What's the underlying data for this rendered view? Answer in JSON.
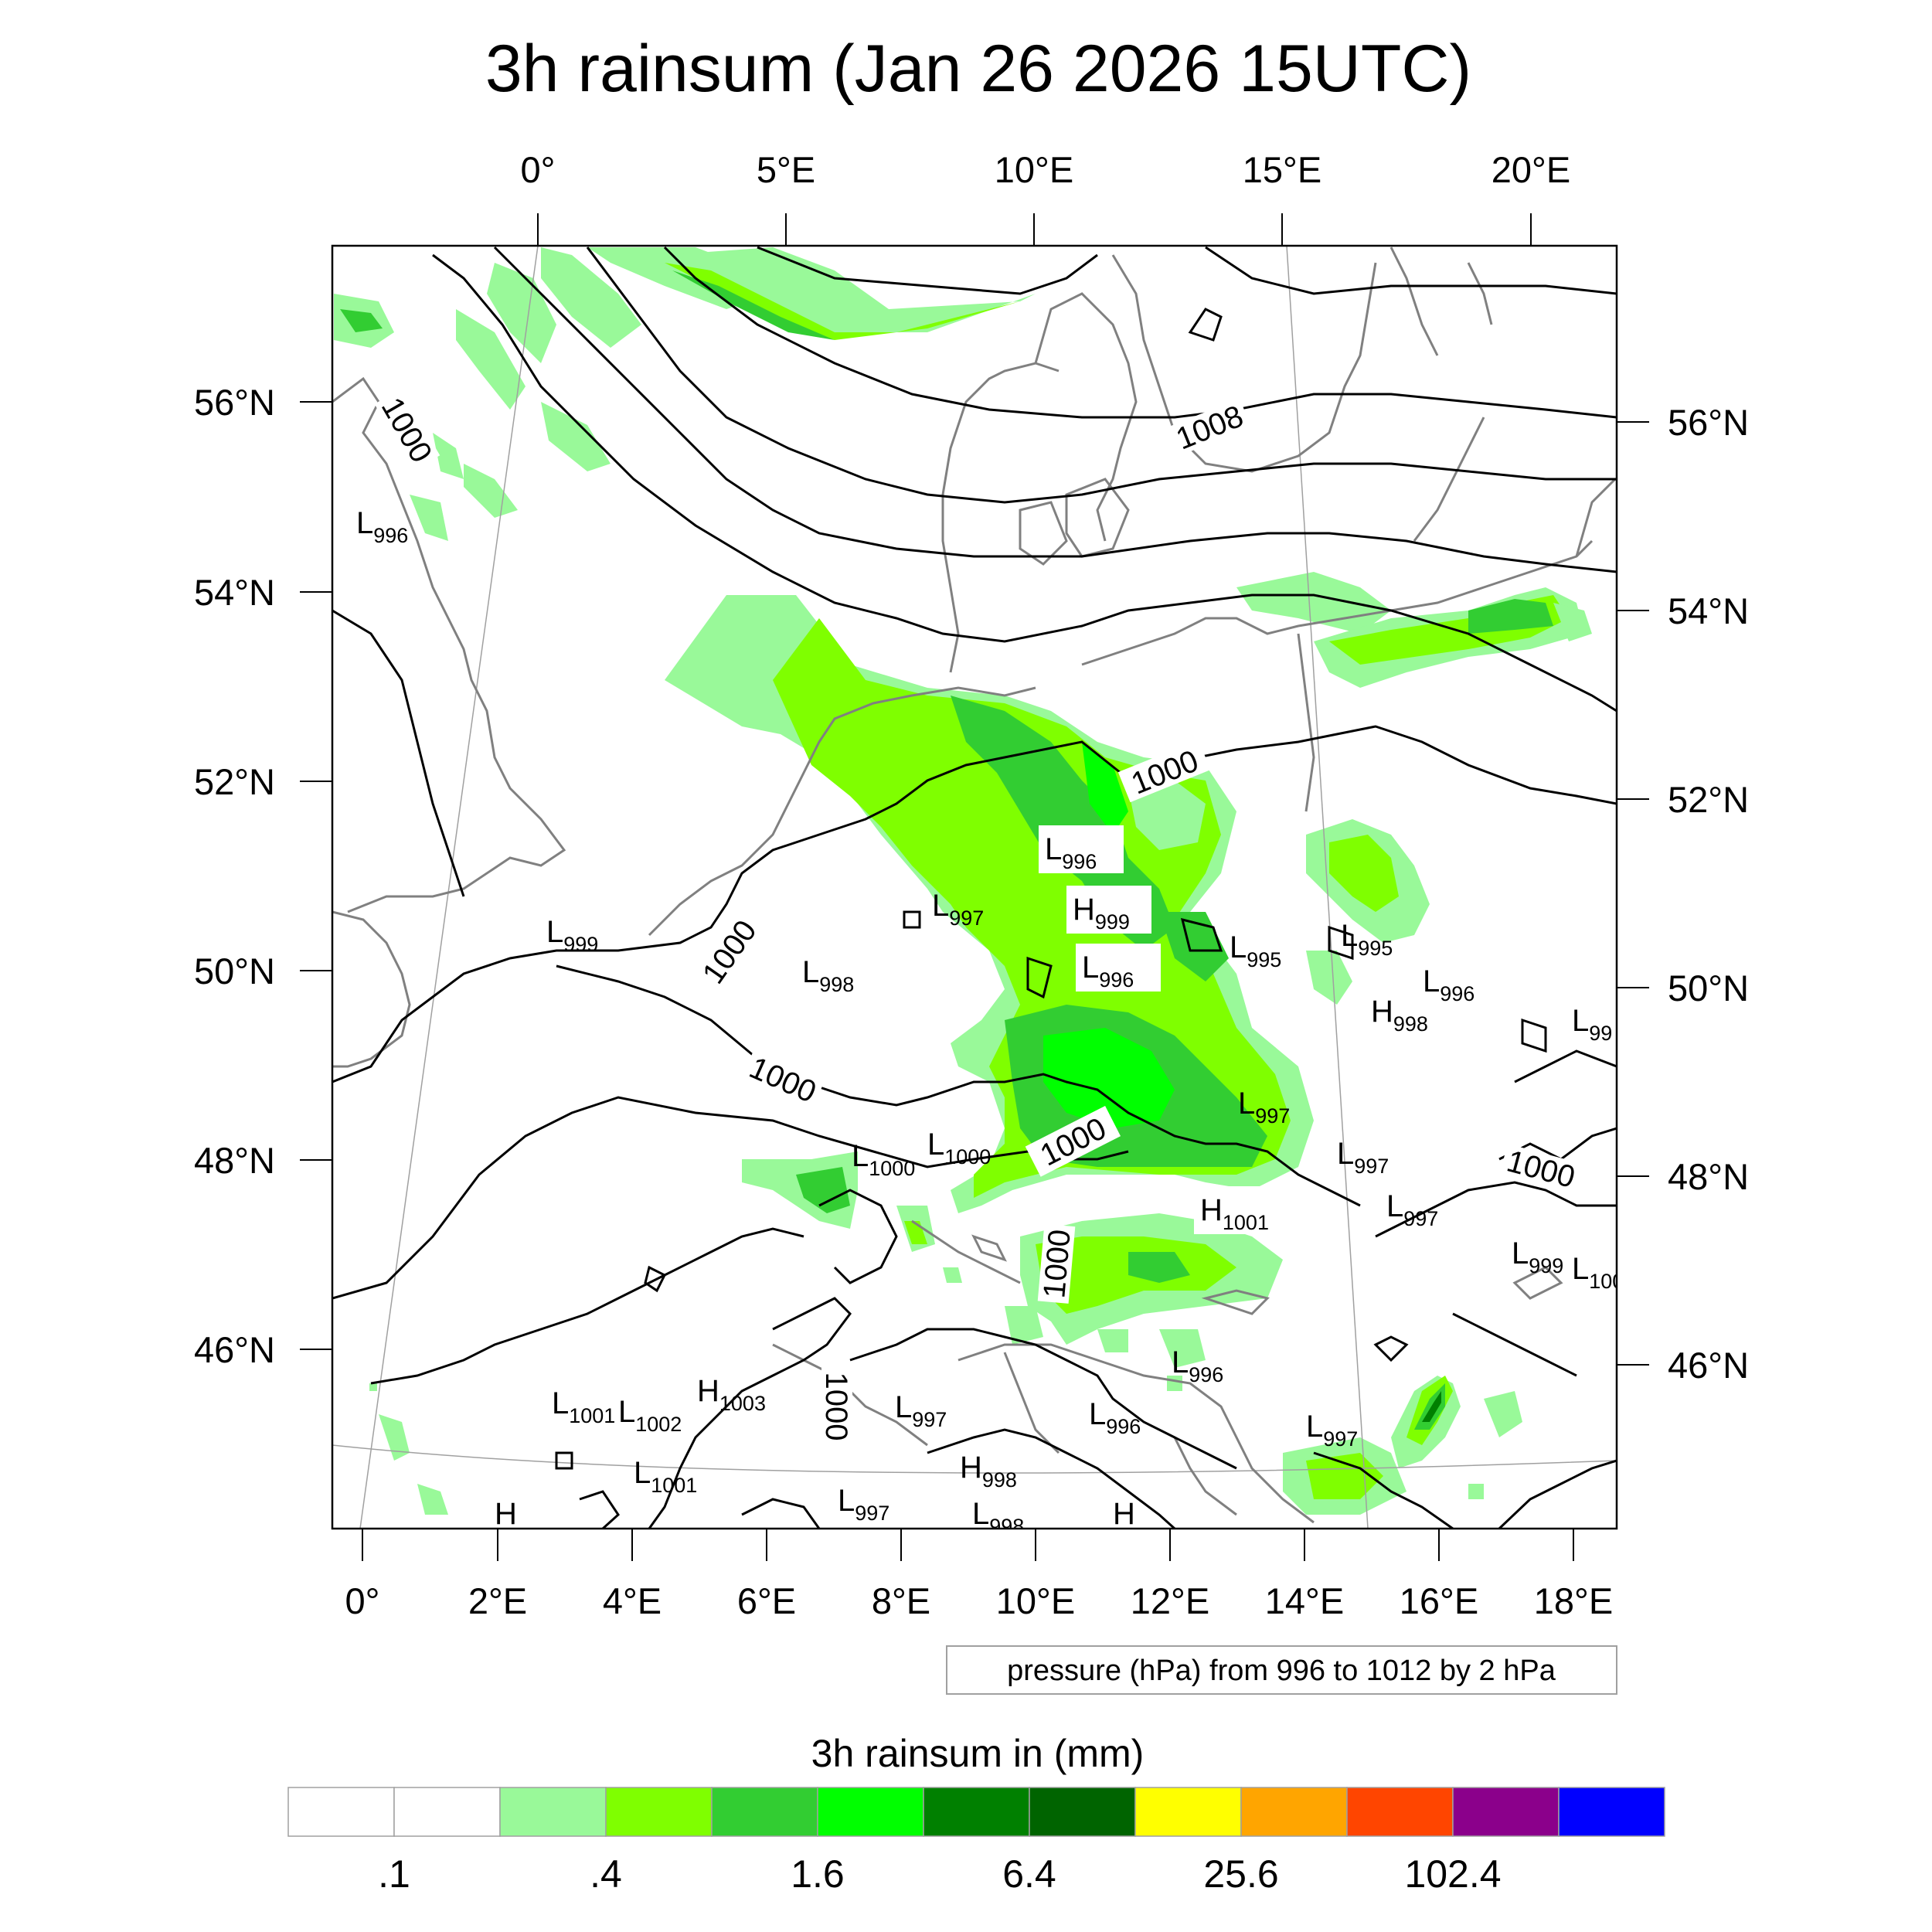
{
  "title": "3h rainsum (Jan 26 2026 15UTC)",
  "info_box": "pressure (hPa) from 996 to 1012 by 2 hPa",
  "colors": {
    "background": "#ffffff",
    "isobar": "#000000",
    "coastline": "#808080",
    "graticule": "#a0a0a0"
  },
  "top_lon_labels": [
    "0°",
    "5°E",
    "10°E",
    "15°E",
    "20°E"
  ],
  "bottom_lon_labels": [
    "0°",
    "2°E",
    "4°E",
    "6°E",
    "8°E",
    "10°E",
    "12°E",
    "14°E",
    "16°E",
    "18°E"
  ],
  "left_lat_labels": [
    "56°N",
    "54°N",
    "52°N",
    "50°N",
    "48°N",
    "46°N"
  ],
  "right_lat_labels": [
    "56°N",
    "54°N",
    "52°N",
    "50°N",
    "48°N",
    "46°N"
  ],
  "isobar_labels": [
    "1000",
    "1008",
    "1000",
    "1000",
    "1000",
    "1000",
    "1000",
    "1000",
    "1000"
  ],
  "pressure_centers": [
    {
      "type": "L",
      "value": "996"
    },
    {
      "type": "L",
      "value": "996"
    },
    {
      "type": "H",
      "value": "999"
    },
    {
      "type": "L",
      "value": "996"
    },
    {
      "type": "L",
      "value": "997"
    },
    {
      "type": "L",
      "value": "999"
    },
    {
      "type": "L",
      "value": "998"
    },
    {
      "type": "L",
      "value": "995"
    },
    {
      "type": "L",
      "value": "995"
    },
    {
      "type": "L",
      "value": "996"
    },
    {
      "type": "H",
      "value": "998"
    },
    {
      "type": "L",
      "value": "99"
    },
    {
      "type": "L",
      "value": "997"
    },
    {
      "type": "L",
      "value": "1000"
    },
    {
      "type": "L",
      "value": "1000"
    },
    {
      "type": "L",
      "value": "997"
    },
    {
      "type": "H",
      "value": "1001"
    },
    {
      "type": "L",
      "value": "997"
    },
    {
      "type": "L",
      "value": "999"
    },
    {
      "type": "L",
      "value": "100"
    },
    {
      "type": "L",
      "value": "996"
    },
    {
      "type": "L",
      "value": "1001"
    },
    {
      "type": "L",
      "value": "1002"
    },
    {
      "type": "H",
      "value": "1003"
    },
    {
      "type": "L",
      "value": "997"
    },
    {
      "type": "L",
      "value": "996"
    },
    {
      "type": "L",
      "value": "997"
    },
    {
      "type": "L",
      "value": "1001"
    },
    {
      "type": "H",
      "value": "998"
    },
    {
      "type": "L",
      "value": "997"
    },
    {
      "type": "L",
      "value": "998"
    },
    {
      "type": "H",
      "value": ""
    },
    {
      "type": "H",
      "value": ""
    }
  ],
  "legend": {
    "title": "3h rainsum in (mm)",
    "colors": [
      "#ffffff",
      "#ffffff",
      "#99f999",
      "#7fff00",
      "#32cd32",
      "#00ff00",
      "#008000",
      "#006400",
      "#ffff00",
      "#ffa500",
      "#ff4500",
      "#8b008b",
      "#0000ff"
    ],
    "labels": [
      ".1",
      ".4",
      "1.6",
      "6.4",
      "25.6",
      "102.4"
    ]
  },
  "rain_palette": {
    "light": "#99f999",
    "lime": "#7fff00",
    "medium": "#32cd32",
    "bright": "#00ff00",
    "dark": "#008000",
    "darkest": "#006400"
  }
}
